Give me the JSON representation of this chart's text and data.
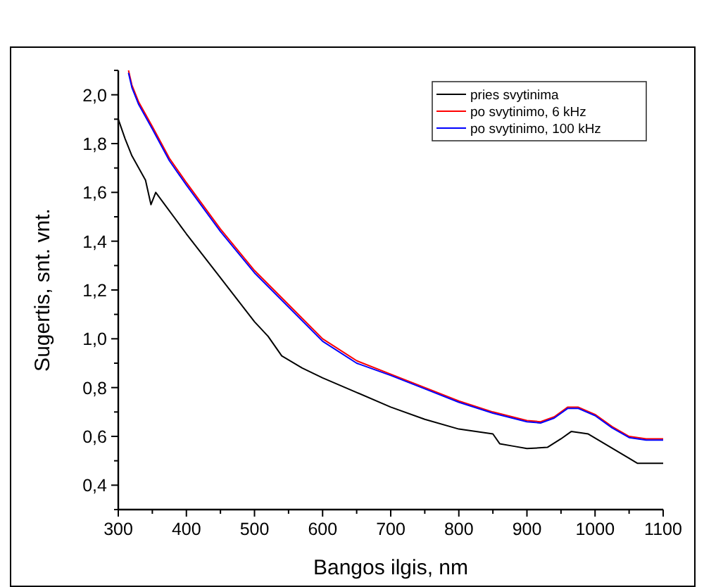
{
  "chart_data": {
    "type": "line",
    "xlabel": "Bangos ilgis, nm",
    "ylabel": "Sugertis, snt. vnt.",
    "xlim": [
      300,
      1100
    ],
    "ylim": [
      0.3,
      2.1
    ],
    "xticks": [
      300,
      {
        "value": 350,
        "label": null
      },
      400,
      {
        "value": 450,
        "label": null
      },
      500,
      {
        "value": 550,
        "label": null
      },
      600,
      {
        "value": 650,
        "label": null
      },
      700,
      {
        "value": 750,
        "label": null
      },
      800,
      {
        "value": 850,
        "label": null
      },
      900,
      {
        "value": 950,
        "label": null
      },
      1000,
      {
        "value": 1050,
        "label": null
      },
      1100
    ],
    "yticks": [
      {
        "value": 0.3,
        "label": null
      },
      {
        "value": 0.4,
        "label": "0,4"
      },
      {
        "value": 0.5,
        "label": null
      },
      {
        "value": 0.6,
        "label": "0,6"
      },
      {
        "value": 0.7,
        "label": null
      },
      {
        "value": 0.8,
        "label": "0,8"
      },
      {
        "value": 0.9,
        "label": null
      },
      {
        "value": 1.0,
        "label": "1,0"
      },
      {
        "value": 1.1,
        "label": null
      },
      {
        "value": 1.2,
        "label": "1,2"
      },
      {
        "value": 1.3,
        "label": null
      },
      {
        "value": 1.4,
        "label": "1,4"
      },
      {
        "value": 1.5,
        "label": null
      },
      {
        "value": 1.6,
        "label": "1,6"
      },
      {
        "value": 1.7,
        "label": null
      },
      {
        "value": 1.8,
        "label": "1,8"
      },
      {
        "value": 1.9,
        "label": null
      },
      {
        "value": 2.0,
        "label": "2,0"
      },
      {
        "value": 2.1,
        "label": null
      }
    ],
    "grid": false,
    "legend": "top right",
    "marker": "none",
    "line_style": "solid",
    "series": [
      {
        "name": "pries svytinima",
        "color": "#000000",
        "x": [
          300,
          310,
          320,
          340,
          348,
          355,
          400,
          450,
          500,
          520,
          540,
          570,
          600,
          650,
          700,
          750,
          800,
          850,
          860,
          880,
          900,
          930,
          950,
          965,
          990,
          1020,
          1050,
          1062,
          1080,
          1100
        ],
        "values": [
          1.9,
          1.82,
          1.75,
          1.65,
          1.55,
          1.6,
          1.43,
          1.25,
          1.07,
          1.01,
          0.93,
          0.88,
          0.84,
          0.78,
          0.72,
          0.67,
          0.63,
          0.61,
          0.57,
          0.56,
          0.55,
          0.555,
          0.59,
          0.62,
          0.61,
          0.56,
          0.51,
          0.49,
          0.49,
          0.49
        ]
      },
      {
        "name": "po svytinimo, 6 kHz",
        "color": "#ff0000",
        "x": [
          315,
          320,
          330,
          350,
          375,
          400,
          450,
          500,
          550,
          600,
          650,
          700,
          750,
          800,
          850,
          900,
          920,
          940,
          960,
          975,
          1000,
          1025,
          1050,
          1075,
          1100
        ],
        "values": [
          2.1,
          2.04,
          1.97,
          1.87,
          1.74,
          1.64,
          1.45,
          1.28,
          1.14,
          1.0,
          0.91,
          0.855,
          0.8,
          0.745,
          0.7,
          0.665,
          0.66,
          0.68,
          0.72,
          0.72,
          0.69,
          0.64,
          0.6,
          0.59,
          0.59
        ]
      },
      {
        "name": "po svytinimo, 100 kHz",
        "color": "#0000ff",
        "x": [
          315,
          320,
          330,
          350,
          375,
          400,
          450,
          500,
          550,
          600,
          650,
          700,
          750,
          800,
          850,
          900,
          920,
          940,
          960,
          975,
          1000,
          1025,
          1050,
          1075,
          1100
        ],
        "values": [
          2.09,
          2.03,
          1.96,
          1.86,
          1.73,
          1.63,
          1.44,
          1.27,
          1.13,
          0.99,
          0.9,
          0.85,
          0.795,
          0.74,
          0.695,
          0.66,
          0.655,
          0.675,
          0.715,
          0.715,
          0.685,
          0.635,
          0.595,
          0.585,
          0.585
        ]
      }
    ]
  }
}
